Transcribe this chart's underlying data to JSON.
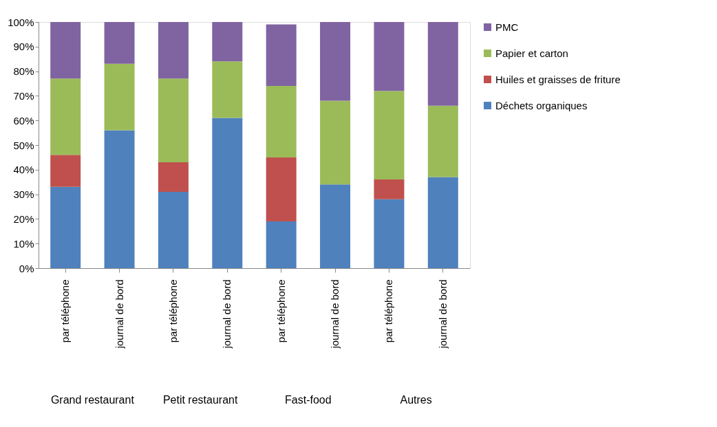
{
  "chart_data": {
    "type": "bar",
    "stacked": true,
    "categories": [
      "par téléphone",
      "journal de bord",
      "par téléphone",
      "journal de bord",
      "par téléphone",
      "journal de bord",
      "par téléphone",
      "journal de bord"
    ],
    "series": [
      {
        "name": "Déchets organiques",
        "color": "#4f81bd",
        "values": [
          33,
          56,
          31,
          61,
          19,
          34,
          28,
          37
        ]
      },
      {
        "name": "Huiles et graisses de friture",
        "color": "#c0504d",
        "values": [
          13,
          0,
          12,
          0,
          26,
          0,
          8,
          0
        ]
      },
      {
        "name": "Papier et carton",
        "color": "#9bbb59",
        "values": [
          31,
          27,
          34,
          23,
          29,
          34,
          36,
          29
        ]
      },
      {
        "name": "PMC",
        "color": "#8064a2",
        "values": [
          23,
          17,
          23,
          16,
          25,
          32,
          28,
          34
        ]
      }
    ],
    "annotations": [
      "Grand restaurant",
      "Petit restaurant",
      "Fast-food",
      "Autres"
    ],
    "ylim": [
      0,
      100
    ],
    "yticks": [
      {
        "value": 0,
        "label": "0%"
      },
      {
        "value": 10,
        "label": "10%"
      },
      {
        "value": 20,
        "label": "20%"
      },
      {
        "value": 30,
        "label": "30%"
      },
      {
        "value": 40,
        "label": "40%"
      },
      {
        "value": 50,
        "label": "50%"
      },
      {
        "value": 60,
        "label": "60%"
      },
      {
        "value": 70,
        "label": "70%"
      },
      {
        "value": 80,
        "label": "80%"
      },
      {
        "value": 90,
        "label": "90%"
      },
      {
        "value": 100,
        "label": "100%"
      }
    ],
    "grid": false,
    "legend": "right"
  }
}
